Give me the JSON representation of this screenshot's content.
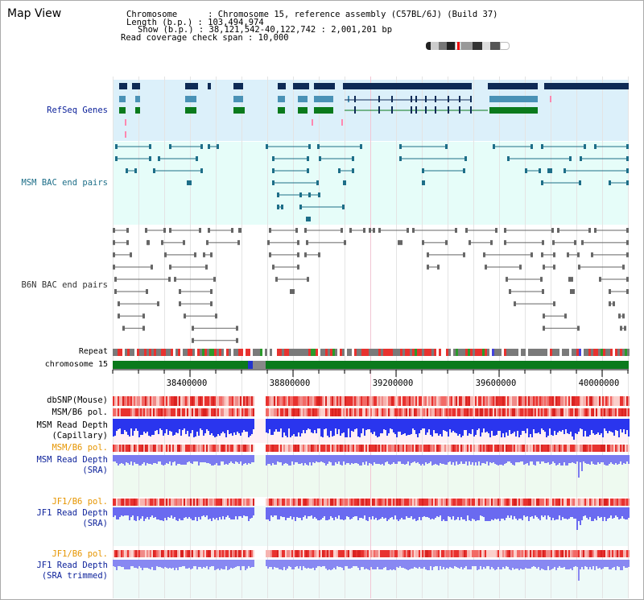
{
  "page": {
    "title": "Map View"
  },
  "header": {
    "chromosome": "Chromosome      : Chromosome 15, reference assembly (C57BL/6J) (Build 37)",
    "length": "Length (b.p.) : 103,494,974",
    "show": "Show (b.p.) : 38,121,542-40,122,742 : 2,001,201 bp",
    "coverage": "Read coverage check span : 10,000"
  },
  "tracks": {
    "refseq": "RefSeq Genes",
    "msm_bac": "MSM BAC end pairs",
    "b6n_bac": "B6N BAC end pairs",
    "repeat": "Repeat",
    "chromosome": "chromosome 15",
    "dbsnp": "dbSNP(Mouse)",
    "msm_b6_pol_1": "MSM/B6 pol.",
    "msm_read_depth_cap_1": "MSM Read Depth",
    "msm_read_depth_cap_2": "(Capillary)",
    "msm_b6_pol_2": "MSM/B6 pol.",
    "msm_read_depth_sra_1": "MSM Read Depth",
    "msm_read_depth_sra_2": "(SRA)",
    "jf1_b6_pol_1": "JF1/B6 pol.",
    "jf1_read_depth_sra_1": "JF1 Read Depth",
    "jf1_read_depth_sra_2": "(SRA)",
    "jf1_b6_pol_2": "JF1/B6 pol.",
    "jf1_read_depth_trim_1": "JF1 Read Depth",
    "jf1_read_depth_trim_2": "(SRA trimmed)"
  },
  "axis": {
    "ticks": [
      "38400000",
      "38800000",
      "39200000",
      "39600000",
      "40000000"
    ]
  },
  "colors": {
    "navy": "#0a1f99",
    "teal": "#1d6e88",
    "refseq_bg": "#dcf0fa",
    "bac_bg": "#e6fdf9",
    "green": "#0b7a1c",
    "snp_red": "#e8322f",
    "depth_blue": "#2233ee",
    "depth_purple": "#7b7bf0",
    "orange": "#e69500"
  }
}
